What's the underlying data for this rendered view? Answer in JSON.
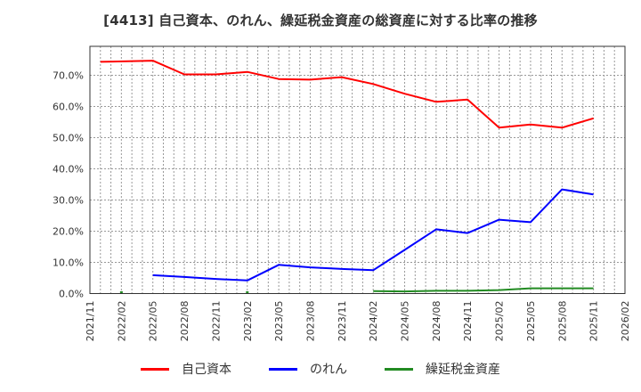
{
  "title": "[4413]  自己資本、のれん、繰延税金資産の総資産に対する比率の推移",
  "chart_data": {
    "type": "line",
    "title": "[4413]  自己資本、のれん、繰延税金資産の総資産に対する比率の推移",
    "xlabel": "",
    "ylabel": "",
    "ylim": [
      0,
      78
    ],
    "grid": true,
    "legend_position": "bottom",
    "x_ticks": [
      "2021/11",
      "2022/02",
      "2022/05",
      "2022/08",
      "2022/11",
      "2023/02",
      "2023/05",
      "2023/08",
      "2023/11",
      "2024/02",
      "2024/05",
      "2024/08",
      "2024/11",
      "2025/02",
      "2025/05",
      "2025/08",
      "2025/11",
      "2026/02"
    ],
    "y_ticks": [
      "0.0%",
      "10.0%",
      "20.0%",
      "30.0%",
      "40.0%",
      "50.0%",
      "60.0%",
      "70.0%"
    ],
    "series": [
      {
        "name": "自己資本",
        "color": "#ff0000",
        "points": [
          [
            "2021/12",
            74.3
          ],
          [
            "2022/05",
            74.7
          ],
          [
            "2022/08",
            70.3
          ],
          [
            "2022/11",
            70.3
          ],
          [
            "2023/02",
            71.1
          ],
          [
            "2023/05",
            68.8
          ],
          [
            "2023/08",
            68.6
          ],
          [
            "2023/11",
            69.4
          ],
          [
            "2024/02",
            67.2
          ],
          [
            "2024/05",
            64.1
          ],
          [
            "2024/08",
            61.5
          ],
          [
            "2024/11",
            62.2
          ],
          [
            "2025/02",
            53.2
          ],
          [
            "2025/05",
            54.2
          ],
          [
            "2025/08",
            53.2
          ],
          [
            "2025/11",
            56.2
          ]
        ]
      },
      {
        "name": "のれん",
        "color": "#0000ff",
        "points": [
          [
            "2022/05",
            5.9
          ],
          [
            "2022/08",
            5.3
          ],
          [
            "2022/11",
            4.7
          ],
          [
            "2023/02",
            4.2
          ],
          [
            "2023/05",
            9.2
          ],
          [
            "2023/08",
            8.4
          ],
          [
            "2023/11",
            7.9
          ],
          [
            "2024/02",
            7.5
          ],
          [
            "2024/05",
            14.0
          ],
          [
            "2024/08",
            20.6
          ],
          [
            "2024/11",
            19.4
          ],
          [
            "2025/02",
            23.7
          ],
          [
            "2025/05",
            22.9
          ],
          [
            "2025/08",
            33.4
          ],
          [
            "2025/11",
            31.8
          ]
        ]
      },
      {
        "name": "繰延税金資産",
        "color": "#228b22",
        "points": [
          [
            "2022/02",
            0.3
          ],
          [
            "2023/02",
            0.3
          ],
          [
            "2024/02",
            0.8
          ],
          [
            "2024/05",
            0.7
          ],
          [
            "2024/08",
            0.9
          ],
          [
            "2024/11",
            0.9
          ],
          [
            "2025/02",
            1.1
          ],
          [
            "2025/05",
            1.7
          ],
          [
            "2025/08",
            1.7
          ],
          [
            "2025/11",
            1.7
          ]
        ],
        "isolated_points": [
          "2022/02",
          "2023/02"
        ]
      }
    ]
  },
  "legend": [
    {
      "label": "自己資本",
      "color": "#ff0000"
    },
    {
      "label": "のれん",
      "color": "#0000ff"
    },
    {
      "label": "繰延税金資産",
      "color": "#228b22"
    }
  ]
}
